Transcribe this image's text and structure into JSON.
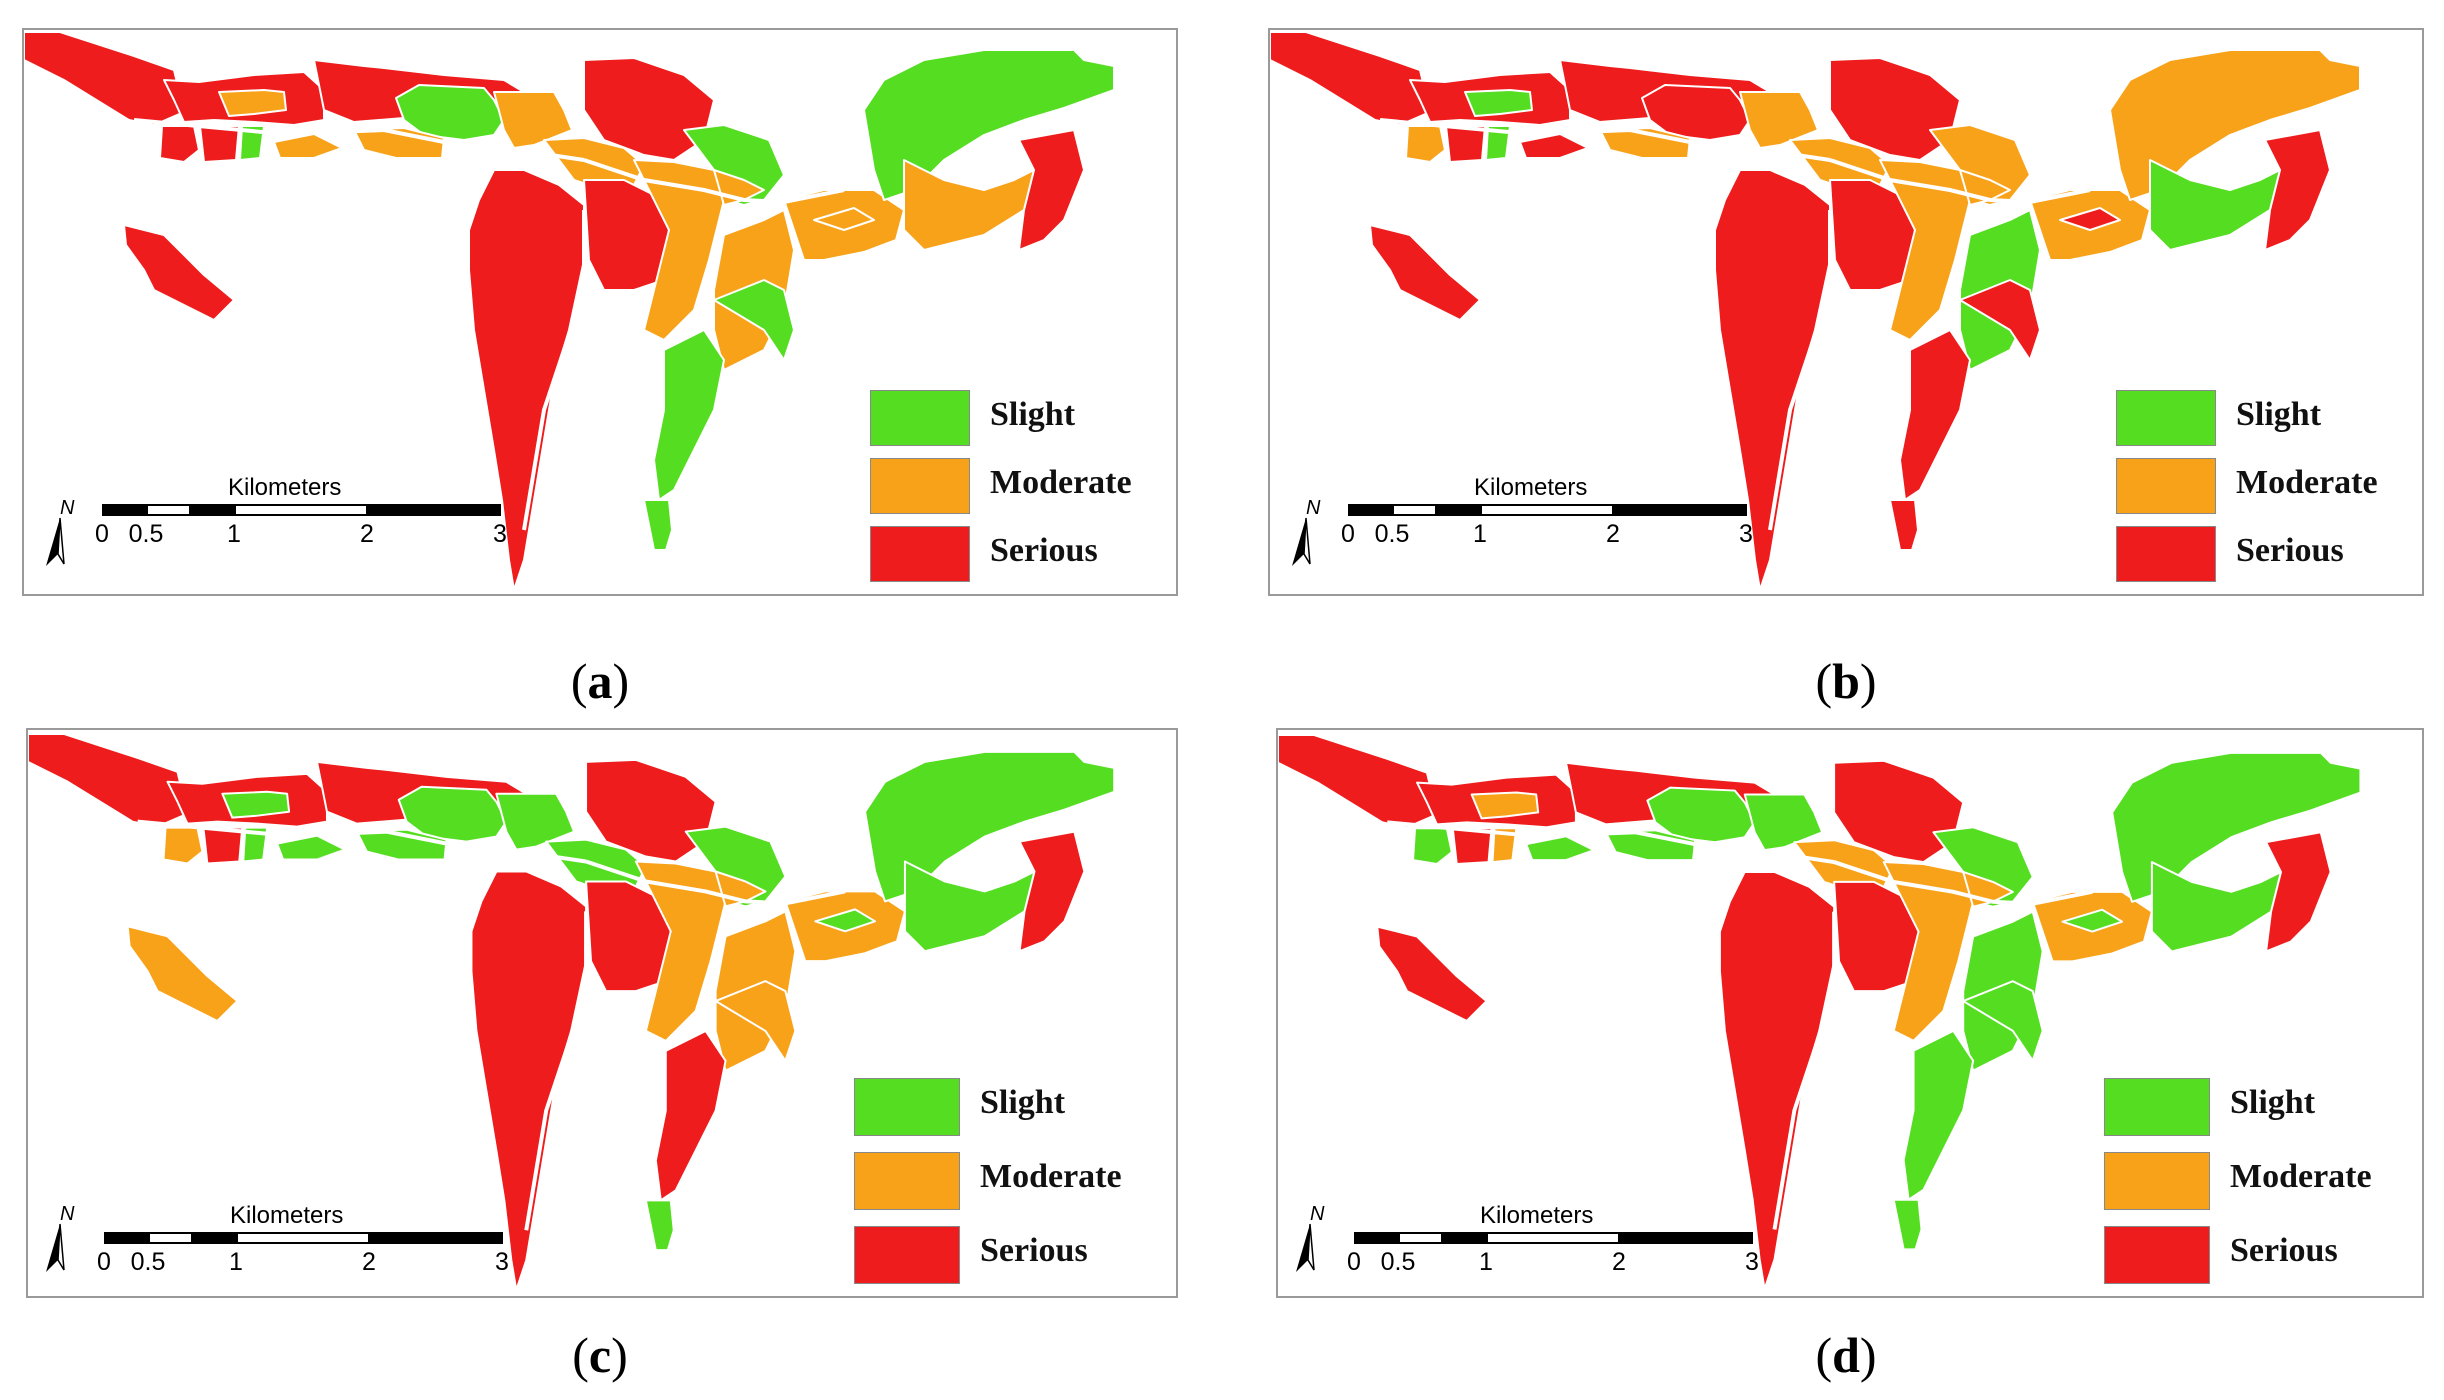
{
  "colors": {
    "slight": "#55dd22",
    "moderate": "#f8a21a",
    "serious": "#ee1c1c",
    "frame": "#9a9a9a"
  },
  "legend": {
    "slight": "Slight",
    "moderate": "Moderate",
    "serious": "Serious"
  },
  "scale_bar": {
    "title": "Kilometers",
    "ticks": [
      "0",
      "0.5",
      "1",
      "2",
      "3"
    ]
  },
  "north_label": "N",
  "panels": [
    {
      "caption_open": "(",
      "caption_letter": "a",
      "caption_close": ")",
      "zones": [
        "serious",
        "serious",
        "moderate",
        "serious",
        "serious",
        "slight",
        "moderate",
        "serious",
        "slight",
        "moderate",
        "moderate",
        "serious",
        "moderate",
        "serious",
        "serious",
        "moderate",
        "slight",
        "moderate",
        "moderate",
        "slight",
        "slight",
        "moderate",
        "moderate",
        "slight",
        "slight",
        "moderate",
        "serious",
        "serious"
      ]
    },
    {
      "caption_open": "(",
      "caption_letter": "b",
      "caption_close": ")",
      "zones": [
        "serious",
        "serious",
        "slight",
        "moderate",
        "serious",
        "slight",
        "serious",
        "serious",
        "serious",
        "moderate",
        "moderate",
        "serious",
        "moderate",
        "serious",
        "serious",
        "moderate",
        "moderate",
        "moderate",
        "slight",
        "serious",
        "serious",
        "moderate",
        "serious",
        "serious",
        "moderate",
        "slight",
        "serious",
        "serious"
      ]
    },
    {
      "caption_open": "(",
      "caption_letter": "c",
      "caption_close": ")",
      "zones": [
        "serious",
        "serious",
        "slight",
        "moderate",
        "serious",
        "slight",
        "slight",
        "serious",
        "slight",
        "slight",
        "slight",
        "serious",
        "slight",
        "serious",
        "serious",
        "moderate",
        "slight",
        "moderate",
        "moderate",
        "serious",
        "slight",
        "moderate",
        "slight",
        "moderate",
        "slight",
        "slight",
        "serious",
        "moderate"
      ]
    },
    {
      "caption_open": "(",
      "caption_letter": "d",
      "caption_close": ")",
      "zones": [
        "serious",
        "serious",
        "moderate",
        "slight",
        "serious",
        "moderate",
        "slight",
        "serious",
        "slight",
        "slight",
        "slight",
        "serious",
        "moderate",
        "serious",
        "serious",
        "moderate",
        "slight",
        "moderate",
        "slight",
        "slight",
        "slight",
        "moderate",
        "slight",
        "slight",
        "slight",
        "slight",
        "serious",
        "serious"
      ]
    }
  ]
}
